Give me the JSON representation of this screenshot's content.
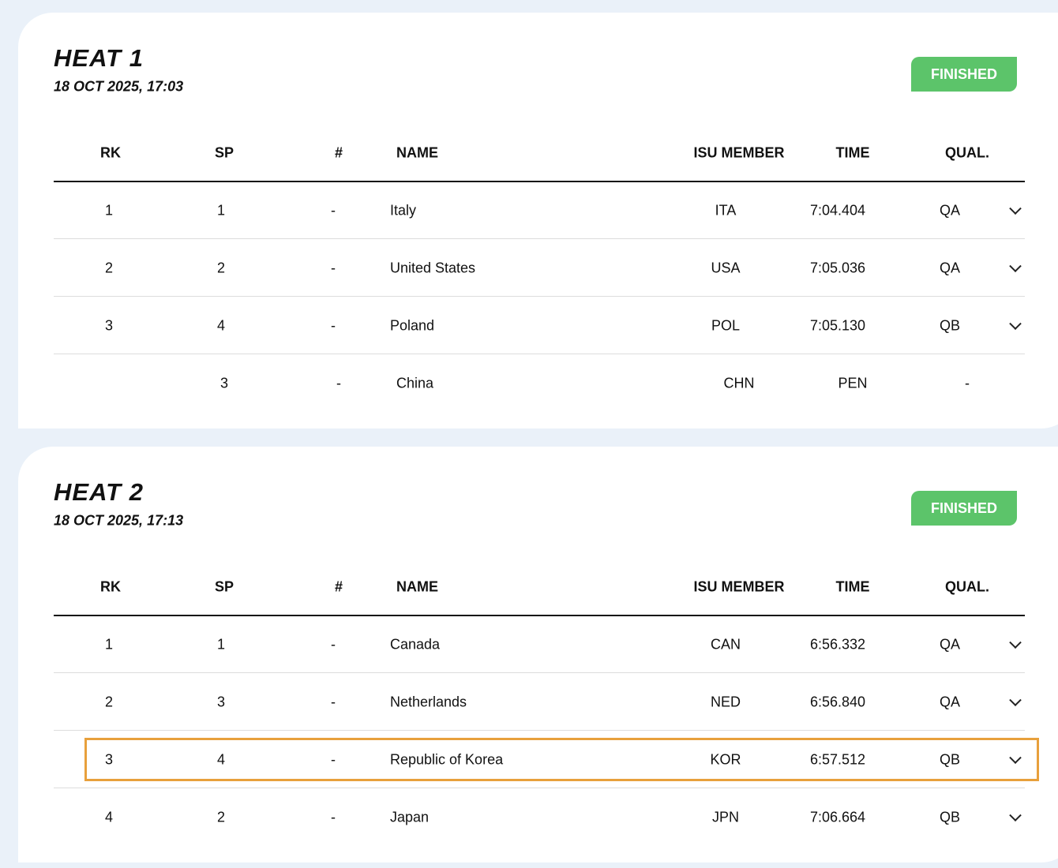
{
  "heats": [
    {
      "title": "HEAT 1",
      "datetime": "18 OCT 2025, 17:03",
      "status": "FINISHED",
      "columns": [
        "RK",
        "SP",
        "#",
        "NAME",
        "ISU MEMBER",
        "TIME",
        "QUAL."
      ],
      "rows": [
        {
          "rk": 1,
          "sp": 1,
          "num": "-",
          "name": "Italy",
          "member": "ITA",
          "time": "7:04.404",
          "qual": "QA"
        },
        {
          "rk": 2,
          "sp": 2,
          "num": "-",
          "name": "United States",
          "member": "USA",
          "time": "7:05.036",
          "qual": "QA"
        },
        {
          "rk": 3,
          "sp": 4,
          "num": "-",
          "name": "Poland",
          "member": "POL",
          "time": "7:05.130",
          "qual": "QB"
        },
        {
          "sp": 3,
          "num": "-",
          "name": "China",
          "member": "CHN",
          "time": "PEN",
          "qual": "-"
        }
      ]
    },
    {
      "title": "HEAT 2",
      "datetime": "18 OCT 2025, 17:13",
      "status": "FINISHED",
      "columns": [
        "RK",
        "SP",
        "#",
        "NAME",
        "ISU MEMBER",
        "TIME",
        "QUAL."
      ],
      "rows": [
        {
          "rk": 1,
          "sp": 1,
          "num": "-",
          "name": "Canada",
          "member": "CAN",
          "time": "6:56.332",
          "qual": "QA"
        },
        {
          "rk": 2,
          "sp": 3,
          "num": "-",
          "name": "Netherlands",
          "member": "NED",
          "time": "6:56.840",
          "qual": "QA"
        },
        {
          "rk": 3,
          "sp": 4,
          "num": "-",
          "name": "Republic of Korea",
          "member": "KOR",
          "time": "6:57.512",
          "qual": "QB",
          "highlighted": true
        },
        {
          "rk": 4,
          "sp": 2,
          "num": "-",
          "name": "Japan",
          "member": "JPN",
          "time": "7:06.664",
          "qual": "QB"
        }
      ]
    }
  ]
}
